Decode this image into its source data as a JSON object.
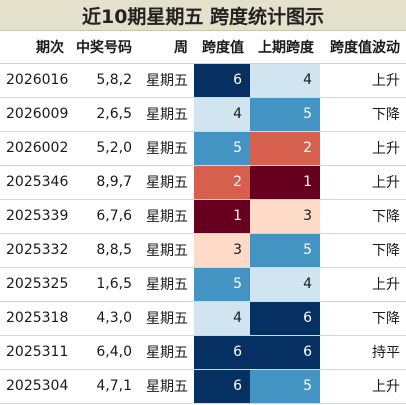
{
  "title": "近10期星期五 跨度统计图示",
  "headers": [
    "期次",
    "中奖号码",
    "周",
    "跨度值",
    "上期跨度",
    "跨度值波动"
  ],
  "colors": {
    "span_1": "#67001f",
    "span_2": "#d6604d",
    "span_3": "#fddbc7",
    "span_4": "#d1e5f0",
    "span_5": "#4393c3",
    "span_6": "#053061"
  },
  "rows": [
    {
      "issue": "2026016",
      "numbers": "5,8,2",
      "week": "星期五",
      "span": "6",
      "prev_span": "4",
      "trend": "上升"
    },
    {
      "issue": "2026009",
      "numbers": "2,6,5",
      "week": "星期五",
      "span": "4",
      "prev_span": "5",
      "trend": "下降"
    },
    {
      "issue": "2026002",
      "numbers": "5,2,0",
      "week": "星期五",
      "span": "5",
      "prev_span": "2",
      "trend": "上升"
    },
    {
      "issue": "2025346",
      "numbers": "8,9,7",
      "week": "星期五",
      "span": "2",
      "prev_span": "1",
      "trend": "上升"
    },
    {
      "issue": "2025339",
      "numbers": "6,7,6",
      "week": "星期五",
      "span": "1",
      "prev_span": "3",
      "trend": "下降"
    },
    {
      "issue": "2025332",
      "numbers": "8,8,5",
      "week": "星期五",
      "span": "3",
      "prev_span": "5",
      "trend": "下降"
    },
    {
      "issue": "2025325",
      "numbers": "1,6,5",
      "week": "星期五",
      "span": "5",
      "prev_span": "4",
      "trend": "上升"
    },
    {
      "issue": "2025318",
      "numbers": "4,3,0",
      "week": "星期五",
      "span": "4",
      "prev_span": "6",
      "trend": "下降"
    },
    {
      "issue": "2025311",
      "numbers": "6,4,0",
      "week": "星期五",
      "span": "6",
      "prev_span": "6",
      "trend": "持平"
    },
    {
      "issue": "2025304",
      "numbers": "4,7,1",
      "week": "星期五",
      "span": "6",
      "prev_span": "5",
      "trend": "上升"
    }
  ]
}
